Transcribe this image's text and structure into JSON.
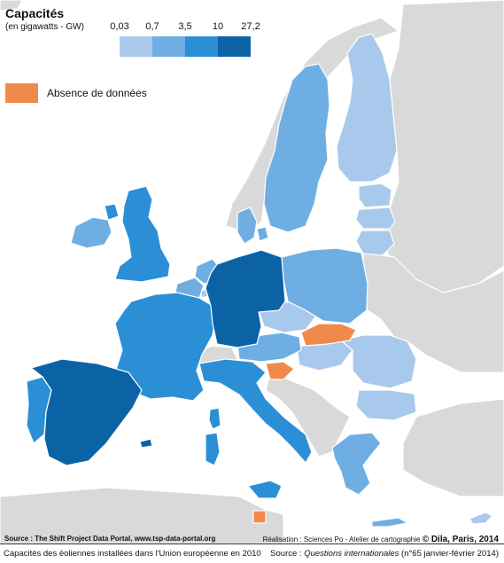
{
  "legend": {
    "title": "Capacités",
    "subtitle": "(en gigawatts - GW)",
    "ticks": [
      "0,03",
      "0,7",
      "3,5",
      "10",
      "27,2"
    ],
    "colors": [
      "#a9c9ec",
      "#6faee3",
      "#2b8fd6",
      "#0b63a6"
    ],
    "nodata_label": "Absence de données",
    "nodata_color": "#f08a4b"
  },
  "map": {
    "background_land_color": "#d9d9d9",
    "sea_color": "#ffffff",
    "country_classes": {
      "Germany": 4,
      "Spain": 4,
      "France": 3,
      "United Kingdom": 3,
      "Italy": 3,
      "Portugal": 3,
      "Sweden": 2,
      "Poland": 2,
      "Ireland": 2,
      "Netherlands": 2,
      "Belgium": 2,
      "Austria": 2,
      "Greece": 2,
      "Denmark": 2,
      "Finland": 1,
      "Estonia": 1,
      "Latvia": 1,
      "Lithuania": 1,
      "Czech Republic": 1,
      "Hungary": 1,
      "Romania": 1,
      "Bulgaria": 1,
      "Cyprus": 1,
      "Luxembourg": 1,
      "Slovakia": "nodata",
      "Slovenia": "nodata",
      "Malta": "nodata"
    }
  },
  "footer": {
    "source_left": "Source : The Shift Project Data Portal, www.tsp-data-portal.org",
    "credit_prefix": "Réalisation : Sciences Po - Atelier de cartographie",
    "credit_strong": "© Dila, Paris, 2014"
  },
  "caption": {
    "left": "Capacités des éoliennes installées dans l'Union européenne en 2010",
    "source_prefix": "Source : ",
    "source_title": "Questions internationales",
    "source_suffix": " (n°65 janvier-février 2014)"
  }
}
